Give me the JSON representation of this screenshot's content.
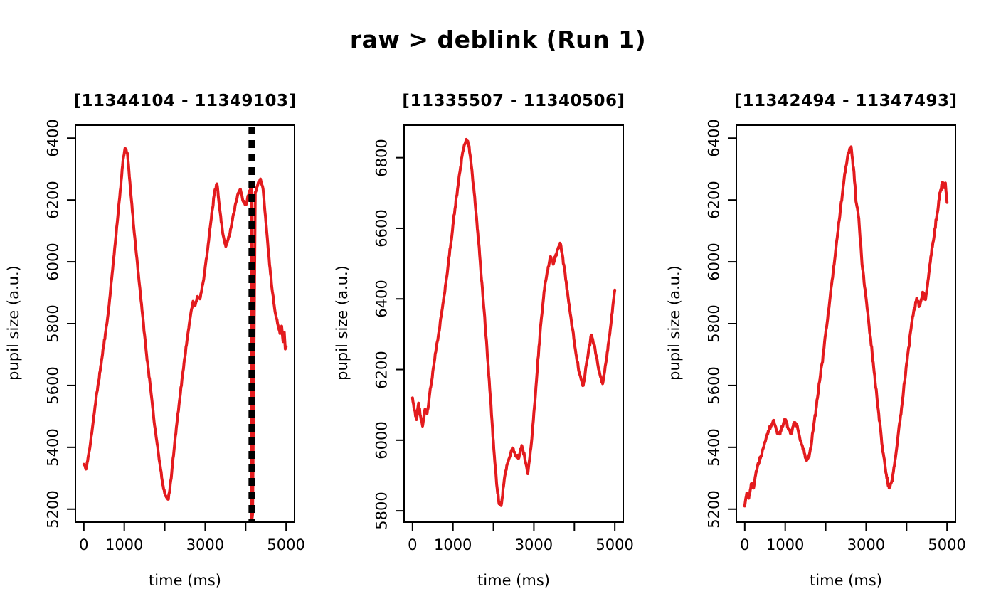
{
  "figure": {
    "title": "raw > deblink (Run 1)",
    "background_color": "#ffffff",
    "axis_color": "#000000",
    "trace_color": "#e31b1e",
    "blink_marker_color": "#000000"
  },
  "chart_data": [
    {
      "type": "line",
      "title": "[11344104 - 11349103]",
      "xlabel": "time (ms)",
      "ylabel": "pupil size (a.u.)",
      "xlim": [
        -208,
        5208
      ],
      "ylim": [
        5158,
        6442
      ],
      "xticks": [
        0,
        1000,
        2000,
        3000,
        4000,
        5000
      ],
      "xtick_labels": [
        "0",
        "1000",
        "",
        "3000",
        "",
        "5000"
      ],
      "yticks": [
        5200,
        5400,
        5600,
        5800,
        6000,
        6200,
        6400
      ],
      "ytick_labels": [
        "5200",
        "5400",
        "5600",
        "5800",
        "6000",
        "6200",
        "6400"
      ],
      "grid": false,
      "legend": null,
      "noise_amp": 6,
      "noise_seed": 7,
      "blink_marker": {
        "time_ms": 4150,
        "style": "dashed-vertical"
      },
      "series": [
        {
          "name": "pupil",
          "points": [
            [
              0,
              5345
            ],
            [
              60,
              5330
            ],
            [
              150,
              5400
            ],
            [
              300,
              5555
            ],
            [
              450,
              5690
            ],
            [
              600,
              5830
            ],
            [
              700,
              5960
            ],
            [
              800,
              6090
            ],
            [
              900,
              6230
            ],
            [
              970,
              6330
            ],
            [
              1020,
              6368
            ],
            [
              1080,
              6350
            ],
            [
              1150,
              6240
            ],
            [
              1250,
              6090
            ],
            [
              1350,
              5960
            ],
            [
              1450,
              5830
            ],
            [
              1550,
              5700
            ],
            [
              1650,
              5590
            ],
            [
              1750,
              5470
            ],
            [
              1850,
              5375
            ],
            [
              1950,
              5280
            ],
            [
              2020,
              5243
            ],
            [
              2090,
              5232
            ],
            [
              2160,
              5300
            ],
            [
              2250,
              5420
            ],
            [
              2350,
              5535
            ],
            [
              2450,
              5645
            ],
            [
              2550,
              5745
            ],
            [
              2640,
              5830
            ],
            [
              2700,
              5872
            ],
            [
              2750,
              5858
            ],
            [
              2810,
              5888
            ],
            [
              2870,
              5880
            ],
            [
              2950,
              5935
            ],
            [
              3050,
              6030
            ],
            [
              3150,
              6140
            ],
            [
              3230,
              6225
            ],
            [
              3290,
              6252
            ],
            [
              3360,
              6170
            ],
            [
              3430,
              6095
            ],
            [
              3510,
              6050
            ],
            [
              3600,
              6085
            ],
            [
              3700,
              6155
            ],
            [
              3800,
              6215
            ],
            [
              3870,
              6235
            ],
            [
              3940,
              6195
            ],
            [
              4010,
              6185
            ],
            [
              4080,
              6220
            ],
            [
              4142,
              6252
            ],
            [
              4152,
              5168
            ],
            [
              4172,
              5185
            ],
            [
              4238,
              6225
            ],
            [
              4300,
              6250
            ],
            [
              4365,
              6268
            ],
            [
              4430,
              6235
            ],
            [
              4500,
              6130
            ],
            [
              4580,
              6010
            ],
            [
              4660,
              5905
            ],
            [
              4740,
              5830
            ],
            [
              4800,
              5795
            ],
            [
              4850,
              5768
            ],
            [
              4890,
              5792
            ],
            [
              4925,
              5742
            ],
            [
              4955,
              5772
            ],
            [
              4980,
              5718
            ],
            [
              5000,
              5725
            ]
          ]
        }
      ]
    },
    {
      "type": "line",
      "title": "[11335507 - 11340506]",
      "xlabel": "time (ms)",
      "ylabel": "pupil size (a.u.)",
      "xlim": [
        -208,
        5208
      ],
      "ylim": [
        5768,
        6892
      ],
      "xticks": [
        0,
        1000,
        2000,
        3000,
        4000,
        5000
      ],
      "xtick_labels": [
        "0",
        "1000",
        "",
        "3000",
        "",
        "5000"
      ],
      "yticks": [
        5800,
        6000,
        6200,
        6400,
        6600,
        6800
      ],
      "ytick_labels": [
        "5800",
        "6000",
        "6200",
        "6400",
        "6600",
        "6800"
      ],
      "grid": false,
      "legend": null,
      "noise_amp": 7,
      "noise_seed": 13,
      "blink_marker": null,
      "series": [
        {
          "name": "pupil",
          "points": [
            [
              0,
              6120
            ],
            [
              50,
              6085
            ],
            [
              100,
              6058
            ],
            [
              150,
              6105
            ],
            [
              200,
              6068
            ],
            [
              250,
              6040
            ],
            [
              310,
              6088
            ],
            [
              360,
              6075
            ],
            [
              450,
              6150
            ],
            [
              550,
              6230
            ],
            [
              650,
              6305
            ],
            [
              750,
              6385
            ],
            [
              850,
              6465
            ],
            [
              950,
              6560
            ],
            [
              1050,
              6655
            ],
            [
              1150,
              6745
            ],
            [
              1250,
              6820
            ],
            [
              1330,
              6852
            ],
            [
              1400,
              6833
            ],
            [
              1480,
              6750
            ],
            [
              1570,
              6645
            ],
            [
              1660,
              6525
            ],
            [
              1750,
              6395
            ],
            [
              1840,
              6260
            ],
            [
              1930,
              6115
            ],
            [
              2010,
              5975
            ],
            [
              2080,
              5875
            ],
            [
              2140,
              5820
            ],
            [
              2190,
              5815
            ],
            [
              2260,
              5880
            ],
            [
              2330,
              5928
            ],
            [
              2400,
              5952
            ],
            [
              2470,
              5978
            ],
            [
              2550,
              5958
            ],
            [
              2620,
              5948
            ],
            [
              2700,
              5985
            ],
            [
              2770,
              5952
            ],
            [
              2850,
              5905
            ],
            [
              2950,
              6005
            ],
            [
              3050,
              6150
            ],
            [
              3150,
              6300
            ],
            [
              3250,
              6420
            ],
            [
              3330,
              6478
            ],
            [
              3410,
              6520
            ],
            [
              3480,
              6498
            ],
            [
              3580,
              6538
            ],
            [
              3660,
              6555
            ],
            [
              3750,
              6490
            ],
            [
              3850,
              6400
            ],
            [
              3950,
              6318
            ],
            [
              4050,
              6238
            ],
            [
              4130,
              6188
            ],
            [
              4220,
              6155
            ],
            [
              4320,
              6230
            ],
            [
              4420,
              6298
            ],
            [
              4500,
              6268
            ],
            [
              4600,
              6200
            ],
            [
              4700,
              6160
            ],
            [
              4800,
              6232
            ],
            [
              4900,
              6325
            ],
            [
              5000,
              6425
            ]
          ]
        }
      ]
    },
    {
      "type": "line",
      "title": "[11342494 - 11347493]",
      "xlabel": "time (ms)",
      "ylabel": "pupil size (a.u.)",
      "xlim": [
        -208,
        5208
      ],
      "ylim": [
        5158,
        6442
      ],
      "xticks": [
        0,
        1000,
        2000,
        3000,
        4000,
        5000
      ],
      "xtick_labels": [
        "0",
        "1000",
        "",
        "3000",
        "",
        "5000"
      ],
      "yticks": [
        5200,
        5400,
        5600,
        5800,
        6000,
        6200,
        6400
      ],
      "ytick_labels": [
        "5200",
        "5400",
        "5600",
        "5800",
        "6000",
        "6200",
        "6400"
      ],
      "grid": false,
      "legend": null,
      "noise_amp": 9,
      "noise_seed": 29,
      "blink_marker": null,
      "series": [
        {
          "name": "pupil",
          "points": [
            [
              0,
              5210
            ],
            [
              50,
              5252
            ],
            [
              100,
              5235
            ],
            [
              160,
              5282
            ],
            [
              220,
              5268
            ],
            [
              280,
              5322
            ],
            [
              340,
              5345
            ],
            [
              400,
              5372
            ],
            [
              460,
              5398
            ],
            [
              520,
              5425
            ],
            [
              580,
              5452
            ],
            [
              650,
              5468
            ],
            [
              720,
              5487
            ],
            [
              780,
              5455
            ],
            [
              850,
              5443
            ],
            [
              920,
              5468
            ],
            [
              1000,
              5487
            ],
            [
              1080,
              5458
            ],
            [
              1150,
              5444
            ],
            [
              1220,
              5480
            ],
            [
              1300,
              5468
            ],
            [
              1380,
              5420
            ],
            [
              1450,
              5394
            ],
            [
              1520,
              5358
            ],
            [
              1590,
              5368
            ],
            [
              1660,
              5425
            ],
            [
              1760,
              5522
            ],
            [
              1860,
              5622
            ],
            [
              1960,
              5722
            ],
            [
              2060,
              5832
            ],
            [
              2160,
              5942
            ],
            [
              2260,
              6052
            ],
            [
              2360,
              6162
            ],
            [
              2460,
              6272
            ],
            [
              2560,
              6352
            ],
            [
              2630,
              6372
            ],
            [
              2700,
              6290
            ],
            [
              2750,
              6195
            ],
            [
              2820,
              6140
            ],
            [
              2900,
              5992
            ],
            [
              3000,
              5882
            ],
            [
              3100,
              5762
            ],
            [
              3200,
              5642
            ],
            [
              3300,
              5522
            ],
            [
              3400,
              5402
            ],
            [
              3500,
              5312
            ],
            [
              3570,
              5268
            ],
            [
              3650,
              5292
            ],
            [
              3750,
              5392
            ],
            [
              3850,
              5502
            ],
            [
              3950,
              5612
            ],
            [
              4050,
              5722
            ],
            [
              4150,
              5822
            ],
            [
              4250,
              5882
            ],
            [
              4320,
              5858
            ],
            [
              4400,
              5902
            ],
            [
              4470,
              5878
            ],
            [
              4550,
              5962
            ],
            [
              4650,
              6062
            ],
            [
              4750,
              6152
            ],
            [
              4830,
              6225
            ],
            [
              4890,
              6258
            ],
            [
              4930,
              6240
            ],
            [
              4960,
              6255
            ],
            [
              5000,
              6192
            ]
          ]
        }
      ]
    }
  ]
}
